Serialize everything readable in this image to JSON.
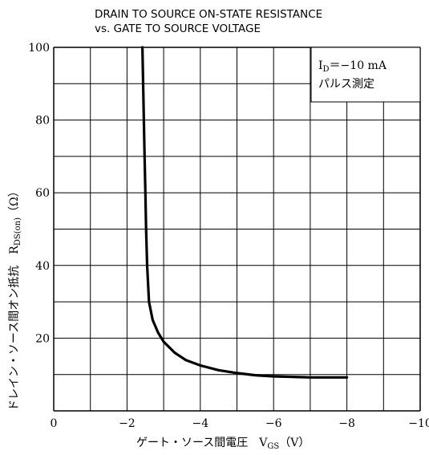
{
  "chart_data": {
    "type": "line",
    "title_line1": "DRAIN TO SOURCE ON-STATE RESISTANCE",
    "title_line2": "vs. GATE TO SOURCE VOLTAGE",
    "xlabel": "ゲート・ソース間電圧　V",
    "xlabel_sub": "GS",
    "xlabel_unit": "（V）",
    "ylabel": "ドレイン・ソース間オン抵抗　R",
    "ylabel_sub": "DS(on)",
    "ylabel_unit": "（Ω）",
    "xlim": [
      0,
      -10
    ],
    "ylim": [
      0,
      100
    ],
    "x_ticks": [
      {
        "value": 0,
        "label": "0"
      },
      {
        "value": -2,
        "label": "−2"
      },
      {
        "value": -4,
        "label": "−4"
      },
      {
        "value": -6,
        "label": "−6"
      },
      {
        "value": -8,
        "label": "−8"
      },
      {
        "value": -10,
        "label": "−10"
      }
    ],
    "y_ticks": [
      {
        "value": 0,
        "label": ""
      },
      {
        "value": 20,
        "label": "20"
      },
      {
        "value": 40,
        "label": "40"
      },
      {
        "value": 60,
        "label": "60"
      },
      {
        "value": 80,
        "label": "80"
      },
      {
        "value": 100,
        "label": "100"
      }
    ],
    "grid": true,
    "annotation": {
      "id_prefix": "I",
      "id_sub": "D",
      "id_value": "＝−10 mA",
      "line2": "パルス測定",
      "position": "top-right"
    },
    "series": [
      {
        "x": [
          -2.42,
          -2.44,
          -2.46,
          -2.48,
          -2.5,
          -2.52,
          -2.55,
          -2.6,
          -2.7,
          -2.85,
          -3.0,
          -3.3,
          -3.6,
          -4.0,
          -4.5,
          -5.0,
          -5.5,
          -6.0,
          -7.0,
          -8.0
        ],
        "y": [
          100,
          90,
          80,
          70,
          60,
          50,
          40,
          30,
          25,
          21.5,
          19,
          16,
          14,
          12.5,
          11.2,
          10.4,
          9.8,
          9.5,
          9.2,
          9.2
        ]
      }
    ]
  },
  "colors": {
    "background": "#ffffff",
    "ink": "#000000"
  }
}
